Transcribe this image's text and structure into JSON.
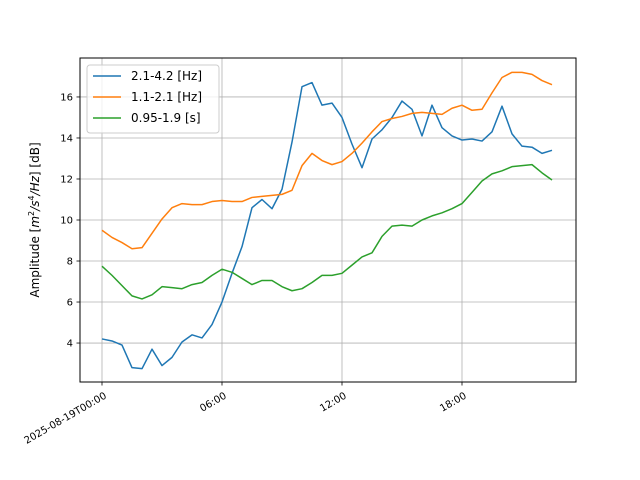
{
  "chart_data": {
    "type": "line",
    "title": "",
    "xlabel": "",
    "ylabel": "Amplitude [m²/s⁴/Hz] [dB]",
    "ylabel_parts": {
      "prefix": "Amplitude [",
      "m": "m",
      "two": "2",
      "s": "/s",
      "four": "4",
      "hz": "/Hz",
      "suffix": "] [dB]"
    },
    "xlim_hours": [
      -1.1,
      23.7
    ],
    "ylim": [
      2.1,
      17.9
    ],
    "x_ticks": [
      {
        "hour": 0,
        "label": "2025-08-19T00:00"
      },
      {
        "hour": 6,
        "label": "06:00"
      },
      {
        "hour": 12,
        "label": "12:00"
      },
      {
        "hour": 18,
        "label": "18:00"
      }
    ],
    "y_ticks": [
      4,
      6,
      8,
      10,
      12,
      14,
      16
    ],
    "grid": true,
    "legend_position": "upper-left",
    "x_hours": [
      0,
      0.5,
      1,
      1.5,
      2,
      2.5,
      3,
      3.5,
      4,
      4.5,
      5,
      5.5,
      6,
      6.5,
      7,
      7.5,
      8,
      8.5,
      9,
      9.5,
      10,
      10.5,
      11,
      11.5,
      12,
      12.5,
      13,
      13.5,
      14,
      14.5,
      15,
      15.5,
      16,
      16.5,
      17,
      17.5,
      18,
      18.5,
      19,
      19.5,
      20,
      20.5,
      21,
      21.5,
      22,
      22.5
    ],
    "series": [
      {
        "name": "2.1-4.2 [Hz]",
        "color": "#1f77b4",
        "values": [
          4.2,
          4.1,
          3.9,
          2.8,
          2.75,
          3.7,
          2.9,
          3.3,
          4.05,
          4.4,
          4.25,
          4.9,
          6.0,
          7.4,
          8.7,
          10.6,
          11.0,
          10.55,
          11.5,
          13.8,
          16.5,
          16.7,
          15.6,
          15.7,
          15.0,
          13.7,
          12.55,
          13.95,
          14.4,
          15.0,
          15.8,
          15.4,
          14.1,
          15.6,
          14.5,
          14.1,
          13.9,
          13.95,
          13.85,
          14.3,
          15.55,
          14.2,
          13.6,
          13.55,
          13.25,
          13.4
        ]
      },
      {
        "name": "1.1-2.1 [Hz]",
        "color": "#ff7f0e",
        "values": [
          9.5,
          9.15,
          8.9,
          8.6,
          8.65,
          9.35,
          10.05,
          10.6,
          10.8,
          10.75,
          10.75,
          10.9,
          10.95,
          10.9,
          10.9,
          11.1,
          11.15,
          11.2,
          11.25,
          11.45,
          12.65,
          13.25,
          12.9,
          12.7,
          12.85,
          13.25,
          13.75,
          14.3,
          14.8,
          14.95,
          15.05,
          15.2,
          15.25,
          15.2,
          15.15,
          15.45,
          15.6,
          15.35,
          15.4,
          16.2,
          16.95,
          17.2,
          17.2,
          17.1,
          16.8,
          16.6
        ]
      },
      {
        "name": "0.95-1.9 [s]",
        "color": "#2ca02c",
        "values": [
          7.75,
          7.3,
          6.8,
          6.3,
          6.15,
          6.35,
          6.75,
          6.7,
          6.65,
          6.85,
          6.95,
          7.3,
          7.6,
          7.45,
          7.15,
          6.85,
          7.05,
          7.05,
          6.75,
          6.55,
          6.65,
          6.95,
          7.3,
          7.3,
          7.4,
          7.8,
          8.2,
          8.4,
          9.2,
          9.7,
          9.75,
          9.7,
          10.0,
          10.2,
          10.35,
          10.55,
          10.8,
          11.35,
          11.9,
          12.25,
          12.4,
          12.6,
          12.65,
          12.7,
          12.3,
          11.95
        ]
      }
    ]
  }
}
